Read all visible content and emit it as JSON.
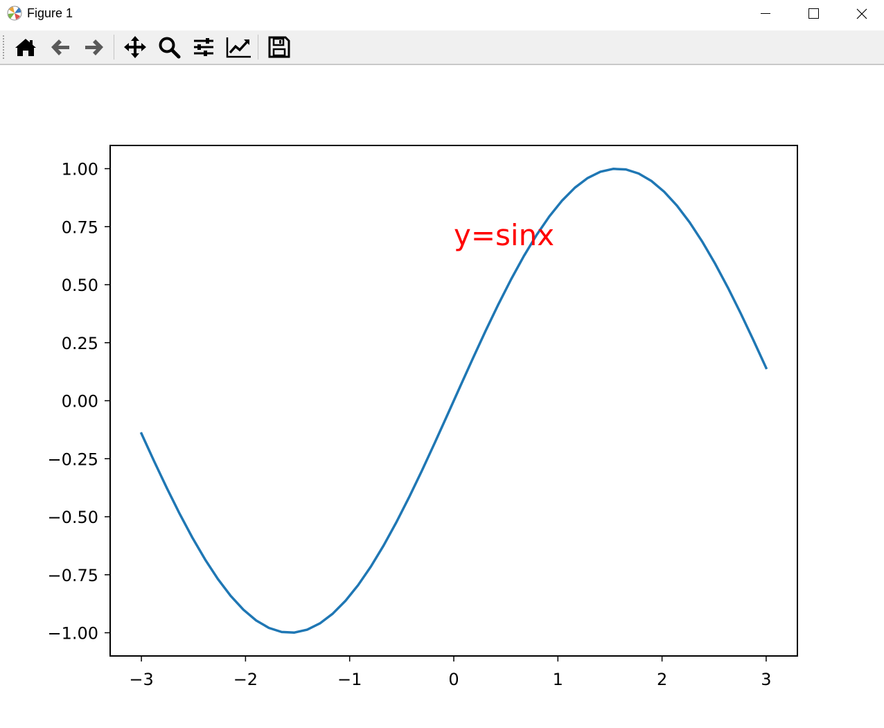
{
  "window": {
    "title": "Figure 1",
    "minimize_icon": "minimize-icon",
    "maximize_icon": "maximize-icon",
    "close_icon": "close-icon"
  },
  "toolbar": {
    "buttons": [
      {
        "name": "home",
        "icon": "home-icon"
      },
      {
        "name": "back",
        "icon": "back-arrow-icon"
      },
      {
        "name": "forward",
        "icon": "forward-arrow-icon"
      },
      {
        "name": "pan",
        "icon": "move-icon"
      },
      {
        "name": "zoom",
        "icon": "zoom-icon"
      },
      {
        "name": "configure-subplots",
        "icon": "sliders-icon"
      },
      {
        "name": "edit-axis",
        "icon": "line-chart-icon"
      },
      {
        "name": "save",
        "icon": "save-icon"
      }
    ]
  },
  "chart_data": {
    "type": "line",
    "title": "",
    "xlabel": "",
    "ylabel": "",
    "xlim": [
      -3.3,
      3.3
    ],
    "ylim": [
      -1.1,
      1.1
    ],
    "x_ticks": [
      -3,
      -2,
      -1,
      0,
      1,
      2,
      3
    ],
    "x_tick_labels": [
      "−3",
      "−2",
      "−1",
      "0",
      "1",
      "2",
      "3"
    ],
    "y_ticks": [
      1.0,
      0.75,
      0.5,
      0.25,
      0.0,
      -0.25,
      -0.5,
      -0.75,
      -1.0
    ],
    "y_tick_labels": [
      "1.00",
      "0.75",
      "0.50",
      "0.25",
      "0.00",
      "−0.25",
      "−0.50",
      "−0.75",
      "−1.00"
    ],
    "grid": false,
    "series": [
      {
        "color": "#1f77b4",
        "function": "sin(x)",
        "x_start": -3,
        "x_end": 3,
        "num_points": 50
      }
    ],
    "annotations": [
      {
        "text": "y=sinx",
        "x": 0,
        "y": 0.67,
        "color": "#ff0000"
      }
    ]
  }
}
